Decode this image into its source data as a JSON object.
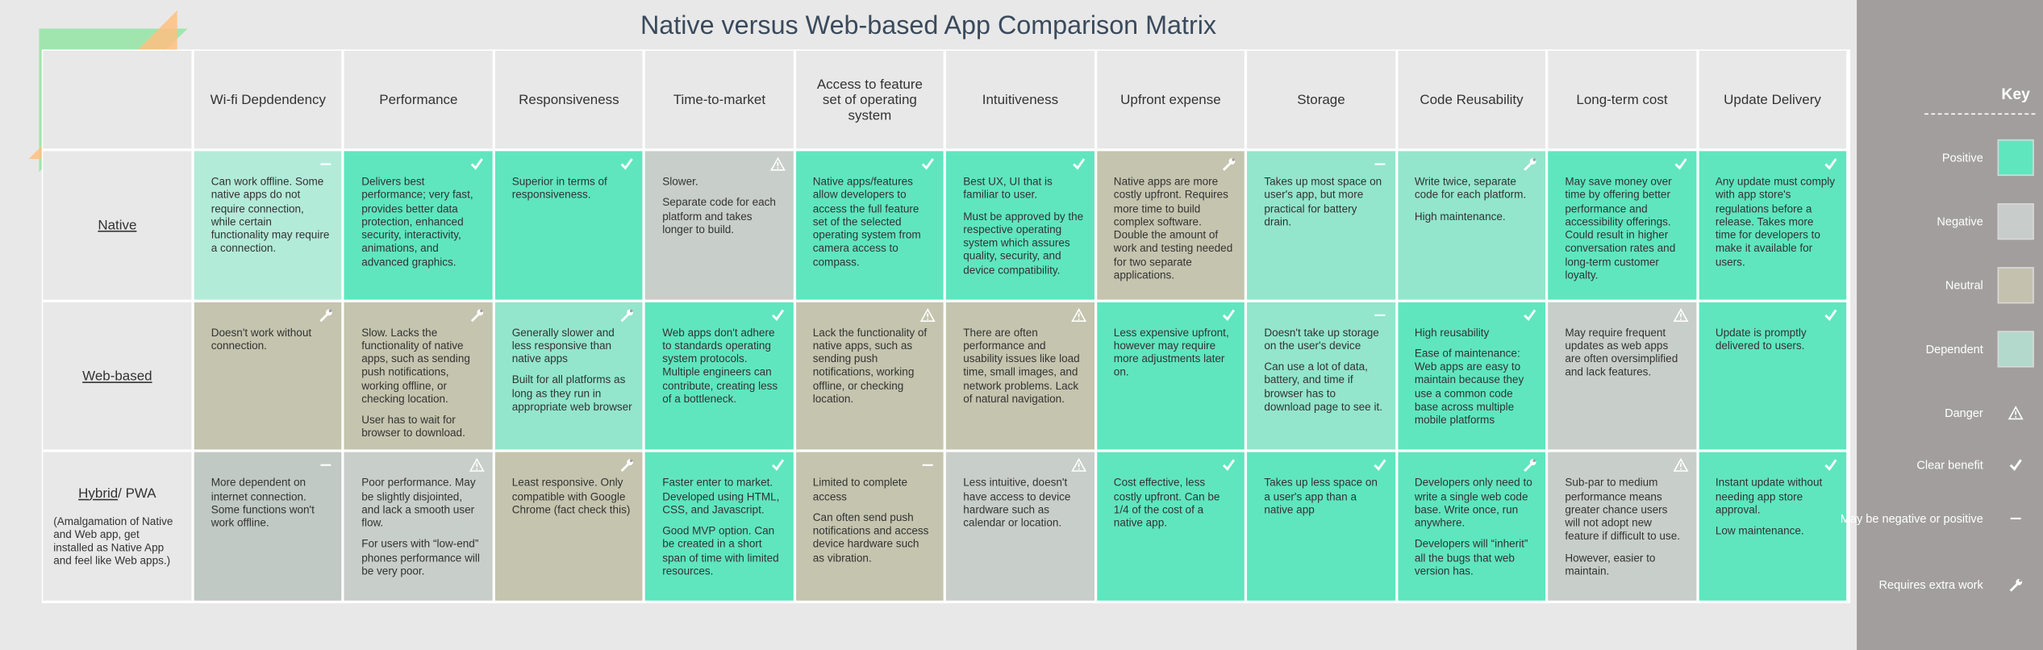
{
  "title": "Native versus Web-based App Comparison Matrix",
  "table": {
    "columns": [
      "Wi-fi Depdendency",
      "Performance",
      "Responsiveness",
      "Time-to-market",
      "Access to feature set of operating system",
      "Intuitiveness",
      "Upfront expense",
      "Storage",
      "Code Reusability",
      "Long-term cost",
      "Update Delivery"
    ],
    "rows": [
      {
        "label": "Native",
        "cells": [
          {
            "color": "#b3ebd9",
            "icon": "dash",
            "paragraphs": [
              "Can work offline. Some native apps do not require connection, while certain functionality may require a connection."
            ]
          },
          {
            "color": "#5fe6bf",
            "icon": "check",
            "paragraphs": [
              "Delivers best performance; very fast, provides better data protection, enhanced security, interactivity, animations, and advanced graphics."
            ]
          },
          {
            "color": "#5fe6bf",
            "icon": "check",
            "paragraphs": [
              "Superior in terms of responsiveness."
            ]
          },
          {
            "color": "#c8ceca",
            "icon": "danger",
            "paragraphs": [
              "Slower.",
              "Separate code for each platform and takes longer to build."
            ]
          },
          {
            "color": "#5fe6bf",
            "icon": "check",
            "paragraphs": [
              "Native apps/features allow developers to access the full feature set of the selected operating system from camera access to compass."
            ]
          },
          {
            "color": "#5fe6bf",
            "icon": "check",
            "paragraphs": [
              "Best UX, UI that is familiar to user.",
              "Must be approved by the respective operating system which assures quality, security, and device compatibility."
            ]
          },
          {
            "color": "#c5c4ae",
            "icon": "wrench",
            "paragraphs": [
              "Native apps are more costly upfront. Requires more time to build complex software. Double the amount of work and testing needed for two separate applications."
            ]
          },
          {
            "color": "#93e6cb",
            "icon": "dash",
            "paragraphs": [
              "Takes up most space on user's app, but more practical for battery drain."
            ]
          },
          {
            "color": "#93e6cb",
            "icon": "wrench",
            "paragraphs": [
              "Write twice, separate code for each platform.",
              "High maintenance."
            ]
          },
          {
            "color": "#5fe6bf",
            "icon": "check",
            "paragraphs": [
              "May save money over time by offering better performance and accessibility offerings. Could result in higher conversation rates and long-term customer loyalty."
            ]
          },
          {
            "color": "#5fe6bf",
            "icon": "check",
            "paragraphs": [
              "Any update must comply with app store's regulations before a release. Takes more time for developers to make it available for users."
            ]
          }
        ]
      },
      {
        "label": "Web-based",
        "cells": [
          {
            "color": "#c5c4ae",
            "icon": "wrench",
            "paragraphs": [
              "Doesn't work without connection."
            ]
          },
          {
            "color": "#c5c4ae",
            "icon": "wrench",
            "paragraphs": [
              "Slow. Lacks the functionality of native apps, such as sending push notifications, working offline, or checking location.",
              "User has to wait for browser to download."
            ]
          },
          {
            "color": "#93e6cb",
            "icon": "wrench",
            "paragraphs": [
              "Generally slower and less responsive than native apps",
              "Built for all platforms as long as they run in appropriate web browser"
            ]
          },
          {
            "color": "#5fe6bf",
            "icon": "check",
            "paragraphs": [
              "Web apps don't adhere to standards operating system protocols. Multiple engineers can contribute, creating less of a bottleneck."
            ]
          },
          {
            "color": "#c5c4ae",
            "icon": "danger",
            "paragraphs": [
              "Lack the functionality of native apps, such as sending push notifications, working offline, or checking location."
            ]
          },
          {
            "color": "#c5c4ae",
            "icon": "danger",
            "paragraphs": [
              "There are often performance and usability issues like load time, small images, and network problems. Lack of natural navigation."
            ]
          },
          {
            "color": "#5fe6bf",
            "icon": "check",
            "paragraphs": [
              "Less expensive upfront, however may require more adjustments later on."
            ]
          },
          {
            "color": "#93e6cb",
            "icon": "dash",
            "paragraphs": [
              "Doesn't take up storage on the user's device",
              "Can use a lot of data, battery, and time if browser has to download page to see it."
            ]
          },
          {
            "color": "#5fe6bf",
            "icon": "check",
            "paragraphs": [
              "High reusability",
              "Ease of maintenance: Web apps are easy to maintain because they use a common code base across multiple mobile platforms"
            ]
          },
          {
            "color": "#c8ceca",
            "icon": "danger",
            "paragraphs": [
              "May require frequent updates as web apps are often oversimplified and lack features."
            ]
          },
          {
            "color": "#5fe6bf",
            "icon": "check",
            "paragraphs": [
              "Update is promptly delivered to users."
            ]
          }
        ]
      },
      {
        "label": "Hybrid",
        "label_rest": "/ PWA",
        "note": "(Amalgamation of Native and Web app, get installed as Native App and feel like Web apps.)",
        "cells": [
          {
            "color": "#c0c9c3",
            "icon": "dash",
            "paragraphs": [
              "More dependent on internet connection. Some functions won't work offline."
            ]
          },
          {
            "color": "#c8ceca",
            "icon": "danger",
            "paragraphs": [
              "Poor performance. May be slightly disjointed, and lack a smooth user flow.",
              "For users with “low-end” phones performance will be very poor."
            ]
          },
          {
            "color": "#c5c4ae",
            "icon": "wrench",
            "paragraphs": [
              "Least responsive. Only compatible with Google Chrome (fact check this)"
            ]
          },
          {
            "color": "#5fe6bf",
            "icon": "check",
            "paragraphs": [
              "Faster enter to market. Developed using HTML, CSS, and Javascript.",
              "Good MVP option. Can be created in a short span of time with limited resources."
            ]
          },
          {
            "color": "#c5c4ae",
            "icon": "dash",
            "paragraphs": [
              "Limited to complete access",
              "Can often send push notifications and access device hardware such as vibration."
            ]
          },
          {
            "color": "#c8ceca",
            "icon": "danger",
            "paragraphs": [
              "Less intuitive, doesn't have access to device hardware such as calendar or location."
            ]
          },
          {
            "color": "#5fe6bf",
            "icon": "check",
            "paragraphs": [
              "Cost effective, less costly upfront. Can be 1/4 of the cost of a native app."
            ]
          },
          {
            "color": "#5fe6bf",
            "icon": "check",
            "paragraphs": [
              "Takes up less space on a user's app than a native app"
            ]
          },
          {
            "color": "#5fe6bf",
            "icon": "wrench",
            "paragraphs": [
              "Developers only need to write a single web code base. Write once, run anywhere.",
              "Developers will “inherit” all the bugs that web version has."
            ]
          },
          {
            "color": "#c8ceca",
            "icon": "danger",
            "paragraphs": [
              "Sub-par to medium performance means greater chance users will not adopt new feature if difficult to use.",
              "However, easier to maintain."
            ]
          },
          {
            "color": "#5fe6bf",
            "icon": "check",
            "paragraphs": [
              "Instant update without needing app store approval.",
              "Low maintenance."
            ]
          }
        ]
      }
    ]
  },
  "key": {
    "title": "Key",
    "items": [
      {
        "label": "Positive",
        "color": "#5fe6bf"
      },
      {
        "label": "Negative",
        "color": "#c8ccca"
      },
      {
        "label": "Neutral",
        "color": "#c4c2ae"
      },
      {
        "label": "Dependent",
        "color": "#b3d9cc"
      },
      {
        "label": "Danger",
        "icon": "danger"
      },
      {
        "label": "Clear benefit",
        "icon": "check"
      },
      {
        "label": "May be negative or positive",
        "icon": "dash"
      },
      {
        "label": "Requires extra work",
        "icon": "wrench"
      }
    ]
  }
}
